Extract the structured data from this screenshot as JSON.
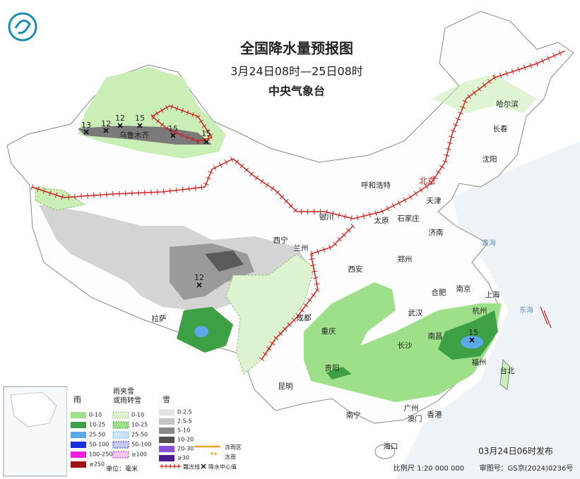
{
  "header": {
    "title": "全国降水量预报图",
    "period": "3月24日08时—25日08时",
    "issuer": "中央气象台"
  },
  "cities": [
    "哈尔滨",
    "长春",
    "沈阳",
    "北京",
    "天津",
    "呼和浩特",
    "石家庄",
    "太原",
    "济南",
    "银川",
    "西宁",
    "兰州",
    "郑州",
    "西安",
    "合肥",
    "南京",
    "上海",
    "杭州",
    "武汉",
    "成都",
    "重庆",
    "长沙",
    "南昌",
    "福州",
    "台北",
    "贵阳",
    "昆明",
    "南宁",
    "广州",
    "澳门",
    "香港",
    "海口",
    "拉萨",
    "乌鲁木齐"
  ],
  "seas": [
    "黄海",
    "东海"
  ],
  "precip_centers": [
    13,
    12,
    12,
    15,
    15,
    15,
    12,
    15
  ],
  "legend": {
    "rain": {
      "title": "雨",
      "items": [
        "0-10",
        "10-25",
        "25-50",
        "50-100",
        "100-250",
        "≥250"
      ]
    },
    "sleet": {
      "title_lines": [
        "雨夹雪",
        "或雨转雪"
      ],
      "items": [
        "0-10",
        "10-25",
        "25-50",
        "50-100",
        "≥100"
      ]
    },
    "snow": {
      "title": "雪",
      "items": [
        "0-2.5",
        "2.5-5",
        "5-10",
        "10-20",
        "20-30",
        "≥30"
      ]
    },
    "unit": "单位：毫米",
    "symbols": [
      "冻雨区",
      "冻雨",
      "霜冻线",
      "降水中心值"
    ]
  },
  "footer": {
    "issued": "03月24日06时发布",
    "scale": "比例尺 1:20 000 000",
    "approval": "审图号：GS京(2024)0236号"
  }
}
